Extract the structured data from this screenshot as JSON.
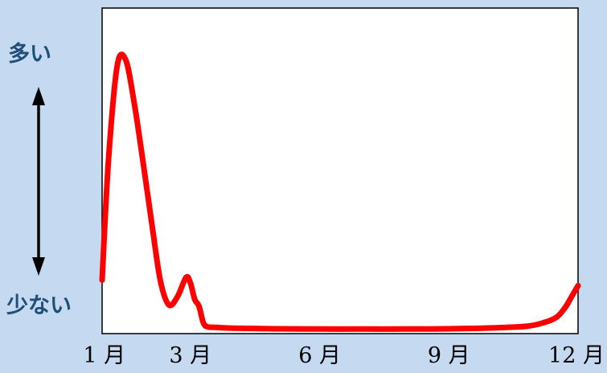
{
  "chart_data": {
    "type": "line",
    "y_axis_high_label": "多い",
    "y_axis_low_label": "少ない",
    "x_tick_labels": [
      "1 月",
      "3 月",
      "6 月",
      "9 月",
      "12 月"
    ],
    "x_tick_months": [
      1,
      3,
      6,
      9,
      12
    ],
    "xlim": [
      0.95,
      12.0
    ],
    "ylim": [
      0,
      1
    ],
    "grid": false,
    "series": [
      {
        "color": "#ff0000",
        "x": [
          0.95,
          1.1,
          1.3,
          1.5,
          1.7,
          1.9,
          2.1,
          2.3,
          2.5,
          2.7,
          2.9,
          3.0,
          3.1,
          3.2,
          3.3,
          3.4,
          3.6,
          4.0,
          5.0,
          6.0,
          7.0,
          8.0,
          9.0,
          10.0,
          10.8,
          11.2,
          11.5,
          11.7,
          11.85,
          12.0
        ],
        "y": [
          0.18,
          0.62,
          0.96,
          0.98,
          0.82,
          0.61,
          0.39,
          0.18,
          0.09,
          0.12,
          0.19,
          0.17,
          0.11,
          0.085,
          0.025,
          0.01,
          0.008,
          0.005,
          0.003,
          0.002,
          0.002,
          0.002,
          0.003,
          0.006,
          0.012,
          0.025,
          0.045,
          0.08,
          0.12,
          0.16
        ]
      }
    ]
  },
  "colors": {
    "background": "#c5d9f1",
    "axis_label": "#1f4e79",
    "series": "#ff0000"
  }
}
